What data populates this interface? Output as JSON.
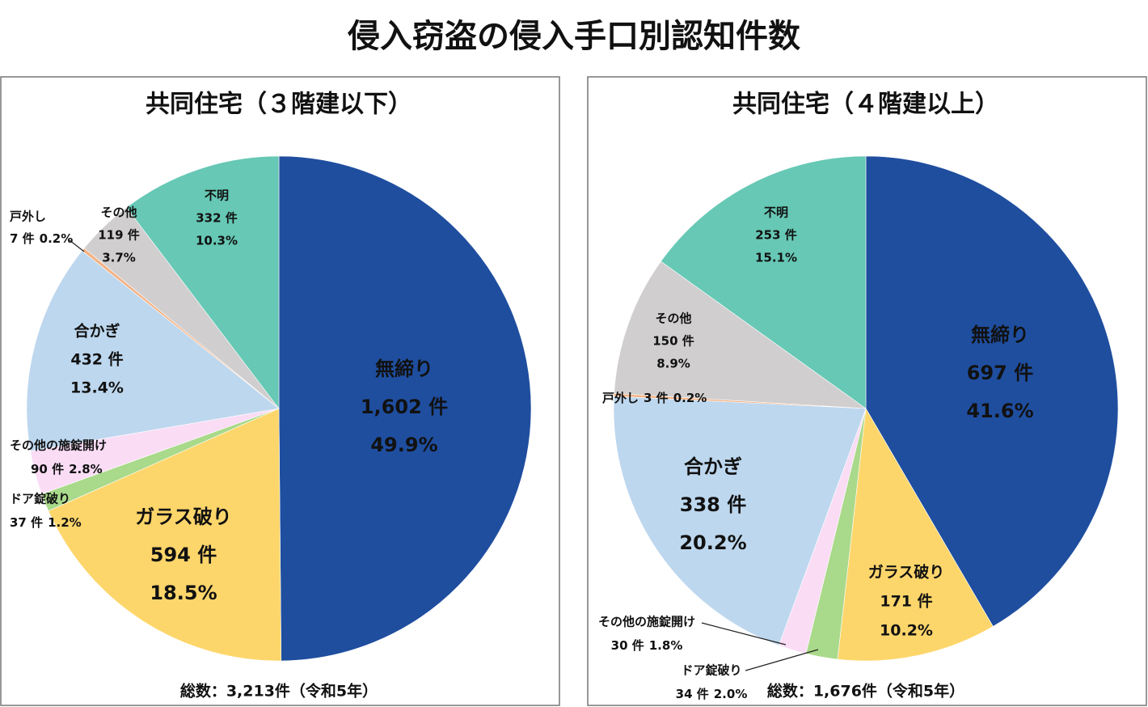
{
  "title": "侵入窃盗の侵入手口別認知件数",
  "chart_data": [
    {
      "type": "pie",
      "title": "共同住宅（３階建以下）",
      "categories": [
        "無締り",
        "ガラス破り",
        "ドア錠破り",
        "その他の施錠開け",
        "合かぎ",
        "戸外し",
        "その他",
        "不明"
      ],
      "values": [
        1602,
        594,
        37,
        90,
        432,
        7,
        119,
        332
      ],
      "value_labels": [
        "1,602 件",
        "594 件",
        "37 件",
        "90 件",
        "432 件",
        "7 件",
        "119 件",
        "332 件"
      ],
      "percents": [
        49.9,
        18.5,
        1.2,
        2.8,
        13.4,
        0.2,
        3.7,
        10.3
      ],
      "percent_labels": [
        "49.9%",
        "18.5%",
        "1.2%",
        "2.8%",
        "13.4%",
        "0.2%",
        "3.7%",
        "10.3%"
      ],
      "colors": [
        "#1f4e9f",
        "#fdd66b",
        "#a9d98a",
        "#fadcf5",
        "#bdd7ee",
        "#f4b183",
        "#d0cece",
        "#66c8b5"
      ],
      "note": "総数：3,213件（令和5年）"
    },
    {
      "type": "pie",
      "title": "共同住宅（４階建以上）",
      "categories": [
        "無締り",
        "ガラス破り",
        "ドア錠破り",
        "その他の施錠開け",
        "合かぎ",
        "戸外し",
        "その他",
        "不明"
      ],
      "values": [
        697,
        171,
        34,
        30,
        338,
        3,
        150,
        253
      ],
      "value_labels": [
        "697 件",
        "171 件",
        "34 件",
        "30 件",
        "338 件",
        "3 件",
        "150 件",
        "253 件"
      ],
      "percents": [
        41.6,
        10.2,
        2.0,
        1.8,
        20.2,
        0.2,
        8.9,
        15.1
      ],
      "percent_labels": [
        "41.6%",
        "10.2%",
        "2.0%",
        "1.8%",
        "20.2%",
        "0.2%",
        "8.9%",
        "15.1%"
      ],
      "colors": [
        "#1f4e9f",
        "#fdd66b",
        "#a9d98a",
        "#fadcf5",
        "#bdd7ee",
        "#f4b183",
        "#d0cece",
        "#66c8b5"
      ],
      "note": "総数：1,676件（令和5年）"
    }
  ]
}
